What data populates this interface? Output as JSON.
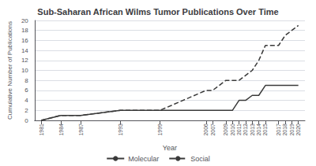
{
  "chart_data": {
    "type": "line",
    "title": "Sub-Saharan African Wilms Tumor Publications Over Time",
    "xlabel": "Year",
    "ylabel": "Cumulative Number of Publications",
    "series": [
      {
        "name": "Molecular",
        "color": "#3a3a3a",
        "line_style": "solid",
        "x": [
          1981,
          1984,
          1987,
          1993,
          1999,
          2006,
          2007,
          2009,
          2010,
          2011,
          2012,
          2013,
          2014,
          2015,
          2017,
          2018,
          2019,
          2020
        ],
        "values": [
          0,
          1,
          1,
          2,
          2,
          2,
          2,
          2,
          2,
          4,
          4,
          5,
          5,
          7,
          7,
          7,
          7,
          7
        ]
      },
      {
        "name": "Social",
        "color": "#3a3a3a",
        "line_style": "dashed",
        "x": [
          1981,
          1984,
          1987,
          1993,
          1999,
          2006,
          2007,
          2008,
          2009,
          2010,
          2011,
          2012,
          2013,
          2014,
          2015,
          2016,
          2017,
          2018,
          2019,
          2020
        ],
        "values": [
          0,
          1,
          1,
          2,
          2,
          6,
          6,
          7,
          8,
          8,
          8,
          9,
          10,
          12,
          15,
          15,
          15,
          17,
          18,
          19
        ]
      }
    ],
    "xlim": [
      1980,
      2021
    ],
    "xticks": [
      1981,
      1984,
      1987,
      1993,
      1999,
      2006,
      2007,
      2009,
      2010,
      2011,
      2012,
      2013,
      2014,
      2015,
      2017,
      2018,
      2019,
      2020
    ],
    "ylim": [
      0,
      20
    ],
    "yticks": [
      0,
      2,
      4,
      6,
      8,
      10,
      12,
      14,
      16,
      18,
      20
    ],
    "grid": true,
    "legend": "bottom"
  }
}
